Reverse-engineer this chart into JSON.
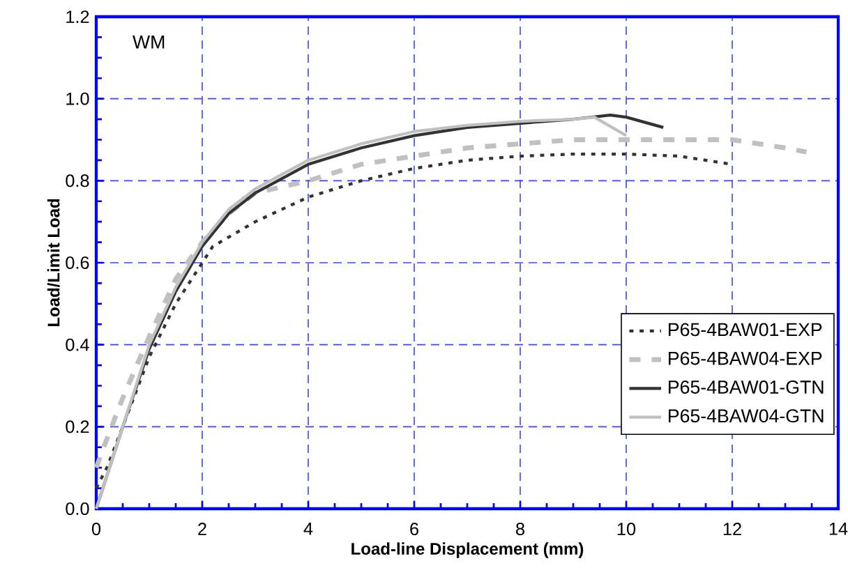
{
  "chart_data": {
    "type": "line",
    "xlabel": "Load-line Displacement (mm)",
    "ylabel": "Load/Limit Load",
    "annotations": [
      "WM"
    ],
    "xlim": [
      0,
      14
    ],
    "xticks": [
      0,
      2,
      4,
      6,
      8,
      10,
      12,
      14
    ],
    "ylim": [
      0,
      1.2
    ],
    "yticks": [
      {
        "value": 0,
        "label": "0.0"
      },
      {
        "value": 0.2,
        "label": "0.2"
      },
      {
        "value": 0.4,
        "label": "0.4"
      },
      {
        "value": 0.6,
        "label": "0.6"
      },
      {
        "value": 0.8,
        "label": "0.8"
      },
      {
        "value": 1.0,
        "label": "1.0"
      },
      {
        "value": 1.2,
        "label": "1.2"
      }
    ],
    "grid": true,
    "legend": "bottom right",
    "marker": "none",
    "series": [
      {
        "name": "P65-4BAW01-EXP",
        "color": "#333333",
        "line_style": "dotted",
        "x": [
          0,
          0.2,
          0.5,
          1,
          1.5,
          2,
          2.2,
          3,
          4,
          5,
          6,
          7,
          8,
          9,
          10,
          11,
          12
        ],
        "values": [
          0.05,
          0.1,
          0.2,
          0.37,
          0.5,
          0.6,
          0.64,
          0.7,
          0.76,
          0.8,
          0.83,
          0.85,
          0.86,
          0.865,
          0.865,
          0.86,
          0.84
        ]
      },
      {
        "name": "P65-4BAW04-EXP",
        "color": "#c0c0c0",
        "line_style": "dashed",
        "x": [
          0,
          0.2,
          0.5,
          1,
          1.5,
          2,
          2.5,
          3,
          4,
          5,
          6,
          7,
          8,
          9,
          10,
          11,
          12,
          13,
          13.4
        ],
        "values": [
          0.1,
          0.17,
          0.27,
          0.42,
          0.56,
          0.65,
          0.72,
          0.77,
          0.8,
          0.84,
          0.86,
          0.88,
          0.89,
          0.9,
          0.9,
          0.9,
          0.9,
          0.88,
          0.87
        ]
      },
      {
        "name": "P65-4BAW01-GTN",
        "color": "#333333",
        "line_style": "solid",
        "x": [
          0,
          0.5,
          1,
          1.5,
          2,
          2.5,
          3,
          4,
          5,
          6,
          7,
          8,
          9,
          9.7,
          10,
          10.7
        ],
        "values": [
          0,
          0.2,
          0.39,
          0.53,
          0.64,
          0.72,
          0.77,
          0.84,
          0.88,
          0.91,
          0.93,
          0.94,
          0.95,
          0.96,
          0.955,
          0.93
        ]
      },
      {
        "name": "P65-4BAW04-GTN",
        "color": "#c0c0c0",
        "line_style": "solid",
        "x": [
          0,
          0.5,
          1,
          1.5,
          2,
          2.5,
          3,
          4,
          5,
          6,
          7,
          8,
          9,
          9.4,
          10
        ],
        "values": [
          0,
          0.2,
          0.4,
          0.54,
          0.65,
          0.73,
          0.78,
          0.85,
          0.89,
          0.92,
          0.935,
          0.945,
          0.95,
          0.955,
          0.91
        ]
      }
    ]
  }
}
